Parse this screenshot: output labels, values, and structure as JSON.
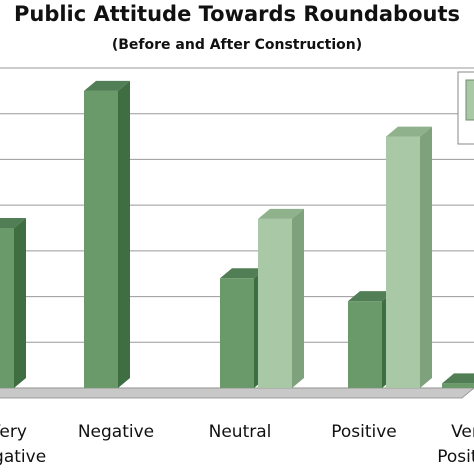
{
  "chart_data": {
    "type": "bar",
    "title": "Public Attitude Towards Roundabouts",
    "subtitle": "(Before and After Construction)",
    "categories": [
      "Very Negative",
      "Negative",
      "Neutral",
      "Positive",
      "Very Positive"
    ],
    "series": [
      {
        "values": [
          35,
          65,
          24,
          19,
          1
        ]
      },
      {
        "values": [
          0,
          0,
          37,
          55,
          0
        ]
      }
    ],
    "ylim": [
      0,
      70
    ],
    "grid": true,
    "colors": {
      "series1_front": "#6a9a6a",
      "series1_side": "#3f6e43",
      "series1_top": "#527e55",
      "series2_front": "#a9c9a6",
      "series2_side": "#7ea27c",
      "series2_top": "#8fb28c",
      "gridline": "#9a9a9a",
      "floor": "#c8c8c8"
    }
  }
}
